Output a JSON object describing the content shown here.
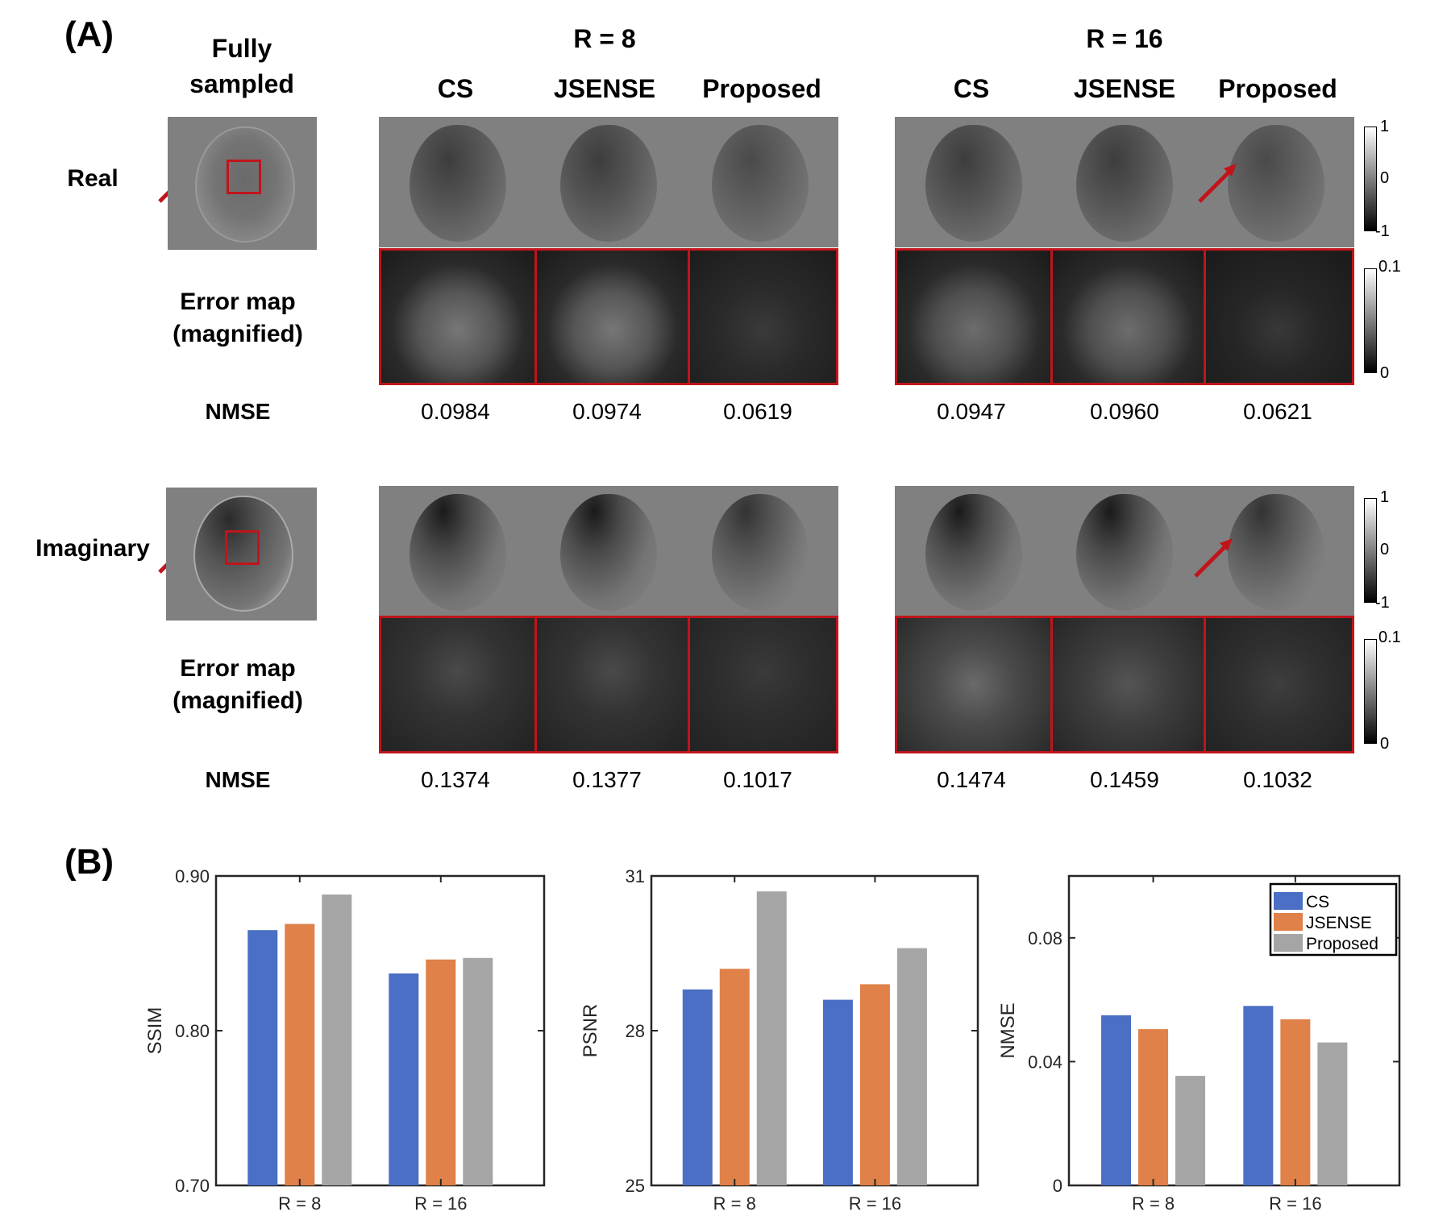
{
  "panelA": {
    "label": "(A)",
    "fully_sampled": [
      "Fully",
      "sampled"
    ],
    "groups": [
      {
        "title": "R = 8",
        "methods": [
          "CS",
          "JSENSE",
          "Proposed"
        ]
      },
      {
        "title": "R = 16",
        "methods": [
          "CS",
          "JSENSE",
          "Proposed"
        ]
      }
    ],
    "rows": [
      {
        "label": "Real",
        "error_label": [
          "Error map",
          "(magnified)"
        ],
        "nmse_label": "NMSE",
        "nmse": [
          "0.0984",
          "0.0974",
          "0.0619",
          "0.0947",
          "0.0960",
          "0.0621"
        ]
      },
      {
        "label": "Imaginary",
        "error_label": [
          "Error map",
          "(magnified)"
        ],
        "nmse_label": "NMSE",
        "nmse": [
          "0.1374",
          "0.1377",
          "0.1017",
          "0.1474",
          "0.1459",
          "0.1032"
        ]
      }
    ],
    "colorbar_image": {
      "top": "1",
      "mid": "0",
      "bottom": "-1"
    },
    "colorbar_error": {
      "top": "0.1",
      "bottom": "0"
    }
  },
  "panelB": {
    "label": "(B)"
  },
  "chart_data": [
    {
      "type": "bar",
      "ylabel": "SSIM",
      "categories": [
        "R = 8",
        "R = 16"
      ],
      "ylim": [
        0.7,
        0.9
      ],
      "yticks": [
        "0.70",
        "0.80",
        "0.90"
      ],
      "ytick_values": [
        0.7,
        0.8,
        0.9
      ],
      "series": [
        {
          "name": "CS",
          "color": "#4a6fc4",
          "values": [
            0.865,
            0.837
          ]
        },
        {
          "name": "JSENSE",
          "color": "#df8148",
          "values": [
            0.869,
            0.846
          ]
        },
        {
          "name": "Proposed",
          "color": "#a5a5a5",
          "values": [
            0.888,
            0.847
          ]
        }
      ]
    },
    {
      "type": "bar",
      "ylabel": "PSNR",
      "categories": [
        "R = 8",
        "R = 16"
      ],
      "ylim": [
        25,
        31
      ],
      "yticks": [
        "25",
        "28",
        "31"
      ],
      "ytick_values": [
        25,
        28,
        31
      ],
      "series": [
        {
          "name": "CS",
          "color": "#4a6fc4",
          "values": [
            28.8,
            28.6
          ]
        },
        {
          "name": "JSENSE",
          "color": "#df8148",
          "values": [
            29.2,
            28.9
          ]
        },
        {
          "name": "Proposed",
          "color": "#a5a5a5",
          "values": [
            30.7,
            29.6
          ]
        }
      ]
    },
    {
      "type": "bar",
      "ylabel": "NMSE",
      "categories": [
        "R = 8",
        "R = 16"
      ],
      "ylim": [
        0,
        0.1
      ],
      "yticks": [
        "0",
        "0.04",
        "0.08"
      ],
      "ytick_values": [
        0,
        0.04,
        0.08
      ],
      "legend": [
        "CS",
        "JSENSE",
        "Proposed"
      ],
      "legend_position": "top-right",
      "series": [
        {
          "name": "CS",
          "color": "#4a6fc4",
          "values": [
            0.055,
            0.058
          ]
        },
        {
          "name": "JSENSE",
          "color": "#df8148",
          "values": [
            0.0505,
            0.0537
          ]
        },
        {
          "name": "Proposed",
          "color": "#a5a5a5",
          "values": [
            0.0354,
            0.0462
          ]
        }
      ]
    }
  ]
}
